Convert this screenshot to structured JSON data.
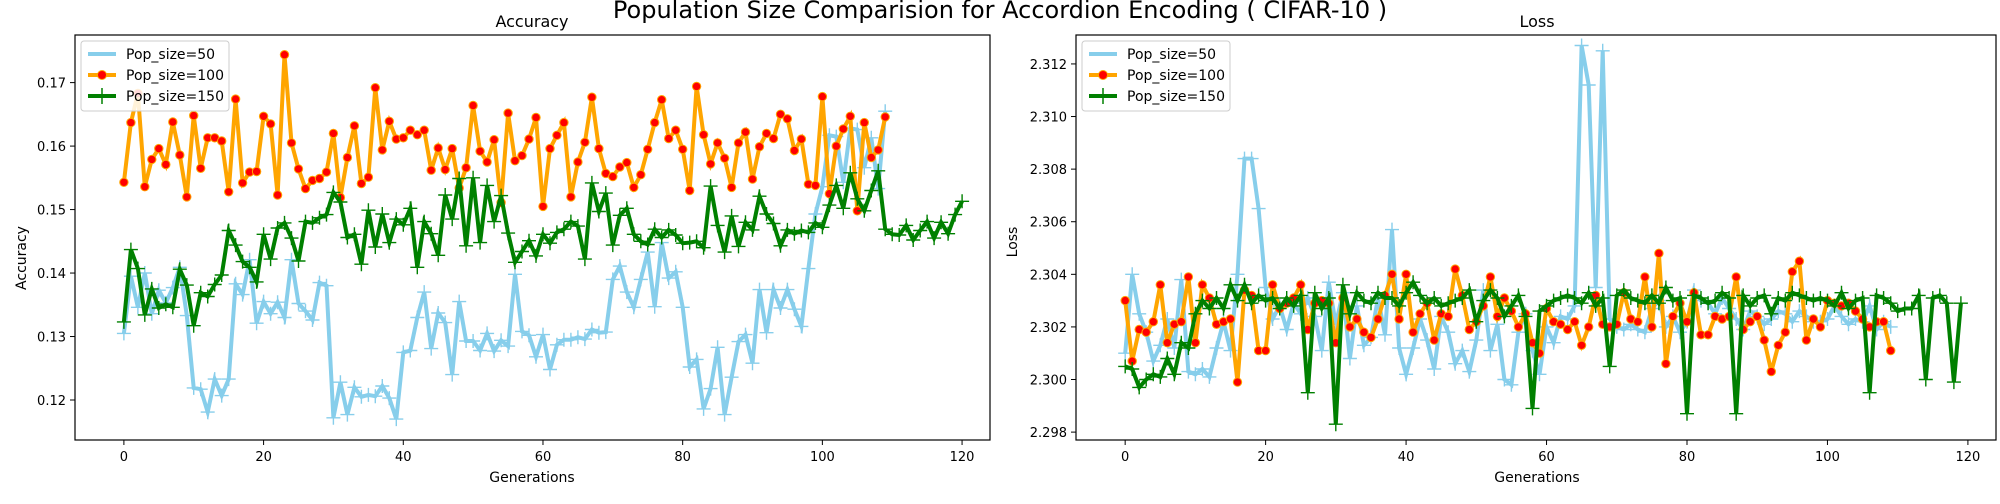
{
  "figure_title": "Population Size Comparision for Accordion Encoding ( CIFAR-10 )",
  "colors": {
    "pop50": "#87ceeb",
    "pop100": "#ffa500",
    "pop100_marker": "#ff0000",
    "pop150": "#008000"
  },
  "chart_data": [
    {
      "type": "line",
      "title": "Accuracy",
      "xlabel": "Generations",
      "ylabel": "Accuracy",
      "xlim": [
        -7,
        124
      ],
      "ylim": [
        0.1137,
        0.1775
      ],
      "xticks": [
        0,
        20,
        40,
        60,
        80,
        100,
        120
      ],
      "yticks": [
        0.12,
        0.13,
        0.14,
        0.15,
        0.16,
        0.17
      ],
      "grid": false,
      "legend_position": "upper-left",
      "series": [
        {
          "name": "Pop_size=50",
          "color": "#87ceeb",
          "marker": "+",
          "values": [
            0.1305,
            0.1395,
            0.1346,
            0.14,
            0.1336,
            0.1373,
            0.1353,
            0.1377,
            0.1409,
            0.1333,
            0.1219,
            0.1217,
            0.1181,
            0.1233,
            0.1207,
            0.1233,
            0.1383,
            0.1366,
            0.1421,
            0.1321,
            0.1355,
            0.1336,
            0.1354,
            0.133,
            0.1421,
            0.1352,
            0.134,
            0.1326,
            0.1385,
            0.138,
            0.1172,
            0.1228,
            0.1177,
            0.122,
            0.1205,
            0.1208,
            0.1206,
            0.1222,
            0.1203,
            0.117,
            0.1275,
            0.1278,
            0.133,
            0.137,
            0.1281,
            0.1337,
            0.1322,
            0.124,
            0.1355,
            0.1293,
            0.1293,
            0.1278,
            0.1305,
            0.1277,
            0.1294,
            0.1285,
            0.1398,
            0.1308,
            0.1302,
            0.1268,
            0.1303,
            0.1248,
            0.1287,
            0.1295,
            0.1295,
            0.1299,
            0.1296,
            0.1311,
            0.1306,
            0.1307,
            0.139,
            0.1411,
            0.137,
            0.1346,
            0.139,
            0.1433,
            0.1347,
            0.1448,
            0.1392,
            0.1402,
            0.1346,
            0.1252,
            0.1264,
            0.1186,
            0.1218,
            0.1283,
            0.1177,
            0.1236,
            0.1292,
            0.1303,
            0.1258,
            0.1374,
            0.1306,
            0.1374,
            0.1345,
            0.1374,
            0.1343,
            0.1316,
            0.1407,
            0.1493,
            0.1536,
            0.1617,
            0.1615,
            0.1543,
            0.1628,
            0.1626,
            0.1566,
            0.1613,
            0.1533,
            0.1655
          ]
        },
        {
          "name": "Pop_size=100",
          "color": "#ffa500",
          "marker": "o",
          "values": [
            0.1543,
            0.1637,
            0.1683,
            0.1536,
            0.1579,
            0.1596,
            0.1571,
            0.1638,
            0.1586,
            0.152,
            0.1648,
            0.1565,
            0.1613,
            0.1613,
            0.1608,
            0.1528,
            0.1674,
            0.1542,
            0.1559,
            0.156,
            0.1647,
            0.1635,
            0.1523,
            0.1744,
            0.1605,
            0.1564,
            0.1533,
            0.1546,
            0.1549,
            0.1559,
            0.162,
            0.1519,
            0.1582,
            0.1632,
            0.1541,
            0.1551,
            0.1692,
            0.1594,
            0.1639,
            0.1611,
            0.1613,
            0.1625,
            0.1618,
            0.1625,
            0.1562,
            0.1597,
            0.1563,
            0.1596,
            0.1534,
            0.1566,
            0.1664,
            0.1592,
            0.1575,
            0.161,
            0.1511,
            0.1652,
            0.1577,
            0.1585,
            0.1611,
            0.1645,
            0.1505,
            0.1596,
            0.1617,
            0.1637,
            0.152,
            0.1575,
            0.1606,
            0.1677,
            0.1596,
            0.1557,
            0.1552,
            0.1567,
            0.1574,
            0.1535,
            0.1555,
            0.1595,
            0.1637,
            0.1673,
            0.1612,
            0.1625,
            0.1595,
            0.153,
            0.1694,
            0.1618,
            0.1572,
            0.1605,
            0.1581,
            0.1535,
            0.1605,
            0.1622,
            0.1548,
            0.1599,
            0.162,
            0.1612,
            0.165,
            0.1643,
            0.1593,
            0.1611,
            0.154,
            0.1538,
            0.1678,
            0.1525,
            0.16,
            0.1627,
            0.1647,
            0.1498,
            0.1637,
            0.1582,
            0.1594,
            0.1646
          ]
        },
        {
          "name": "Pop_size=150",
          "color": "#008000",
          "marker": "+",
          "values": [
            0.1323,
            0.1437,
            0.1407,
            0.1334,
            0.1375,
            0.1345,
            0.1351,
            0.1346,
            0.1406,
            0.1381,
            0.1317,
            0.1369,
            0.1363,
            0.1382,
            0.1397,
            0.1467,
            0.1444,
            0.1418,
            0.1409,
            0.1386,
            0.1461,
            0.1422,
            0.1471,
            0.1479,
            0.1455,
            0.1419,
            0.1481,
            0.1479,
            0.1487,
            0.1492,
            0.1527,
            0.1512,
            0.1456,
            0.1461,
            0.1414,
            0.1499,
            0.1441,
            0.1493,
            0.1448,
            0.1485,
            0.1476,
            0.1502,
            0.1409,
            0.1481,
            0.1462,
            0.1428,
            0.1523,
            0.1485,
            0.1549,
            0.1443,
            0.155,
            0.1448,
            0.1538,
            0.1481,
            0.1522,
            0.1463,
            0.1417,
            0.1434,
            0.1451,
            0.1427,
            0.1461,
            0.1447,
            0.1464,
            0.1469,
            0.1481,
            0.1474,
            0.1422,
            0.1542,
            0.1497,
            0.1526,
            0.1444,
            0.1491,
            0.1502,
            0.1461,
            0.145,
            0.1445,
            0.1469,
            0.1456,
            0.1468,
            0.146,
            0.1447,
            0.1448,
            0.145,
            0.144,
            0.1537,
            0.1475,
            0.1433,
            0.149,
            0.1442,
            0.148,
            0.1468,
            0.1521,
            0.1493,
            0.1478,
            0.1443,
            0.1468,
            0.1462,
            0.1467,
            0.1464,
            0.1479,
            0.1472,
            0.1507,
            0.1538,
            0.1502,
            0.1558,
            0.1517,
            0.1498,
            0.153,
            0.1561,
            0.1469,
            0.1461,
            0.146,
            0.1475,
            0.1452,
            0.1467,
            0.1481,
            0.1455,
            0.148,
            0.1462,
            0.1492,
            0.1513
          ]
        }
      ]
    },
    {
      "type": "line",
      "title": "Loss",
      "xlabel": "Generations",
      "ylabel": "Loss",
      "xlim": [
        -7,
        124
      ],
      "ylim": [
        2.2977,
        2.3131
      ],
      "xticks": [
        0,
        20,
        40,
        60,
        80,
        100,
        120
      ],
      "yticks": [
        2.298,
        2.3,
        2.302,
        2.304,
        2.306,
        2.308,
        2.31,
        2.312
      ],
      "grid": false,
      "legend_position": "upper-left",
      "series": [
        {
          "name": "Pop_size=50",
          "color": "#87ceeb",
          "marker": "+",
          "values": [
            2.301,
            2.304,
            2.3025,
            2.3018,
            2.3007,
            2.3013,
            2.3023,
            2.3012,
            2.3038,
            2.3003,
            2.3002,
            2.3004,
            2.3001,
            2.3012,
            2.3022,
            2.3011,
            2.304,
            2.3084,
            2.3084,
            2.3065,
            2.3035,
            2.3023,
            2.3028,
            2.3019,
            2.3029,
            2.3025,
            2.3031,
            2.3024,
            2.3011,
            2.3037,
            2.3021,
            2.3033,
            2.3008,
            2.3028,
            2.3013,
            2.3016,
            2.3031,
            2.3017,
            2.3057,
            2.3012,
            2.3002,
            2.3012,
            2.3023,
            2.3015,
            2.3004,
            2.3024,
            2.3018,
            2.3006,
            2.3011,
            2.3003,
            2.3015,
            2.3034,
            2.3011,
            2.3021,
            2.3,
            2.2998,
            2.3018,
            2.3025,
            2.3011,
            2.3002,
            2.302,
            2.3014,
            2.3024,
            2.3023,
            2.3028,
            2.3127,
            2.3112,
            2.3035,
            2.3125,
            2.3023,
            2.302,
            2.3019,
            2.3021,
            2.3019,
            2.3018,
            2.3027,
            2.303,
            2.302,
            2.3024,
            2.3018,
            2.3022,
            2.3034,
            2.303,
            2.3029,
            2.3025,
            2.3031,
            2.3027,
            2.3023,
            2.3019,
            2.3026,
            2.3024,
            2.3021,
            2.3023,
            2.3026,
            2.3025,
            2.3022,
            2.3026,
            2.3024,
            2.3022,
            2.3022,
            2.3023,
            2.3028,
            2.3024,
            2.3021,
            2.3023,
            2.3022,
            2.3028,
            2.3019,
            2.3022,
            2.302
          ]
        },
        {
          "name": "Pop_size=100",
          "color": "#ffa500",
          "marker": "o",
          "values": [
            2.303,
            2.3007,
            2.3019,
            2.3018,
            2.3022,
            2.3036,
            2.3014,
            2.3021,
            2.3022,
            2.3039,
            2.3014,
            2.3036,
            2.3031,
            2.3021,
            2.3022,
            2.3023,
            2.2999,
            2.3034,
            2.3032,
            2.3011,
            2.3011,
            2.3036,
            2.3027,
            2.3029,
            2.3031,
            2.3036,
            2.3019,
            2.3029,
            2.303,
            2.3029,
            2.3014,
            2.3031,
            2.302,
            2.3023,
            2.3018,
            2.3016,
            2.3023,
            2.3032,
            2.304,
            2.3023,
            2.304,
            2.3018,
            2.3025,
            2.3029,
            2.3015,
            2.3025,
            2.3024,
            2.3042,
            2.3032,
            2.3019,
            2.3022,
            2.3028,
            2.3039,
            2.3024,
            2.3031,
            2.3026,
            2.302,
            2.3025,
            2.3014,
            2.301,
            2.3027,
            2.3022,
            2.3021,
            2.3019,
            2.3022,
            2.3013,
            2.302,
            2.3032,
            2.3021,
            2.302,
            2.3021,
            2.3033,
            2.3023,
            2.3022,
            2.3039,
            2.302,
            2.3048,
            2.3006,
            2.3024,
            2.3029,
            2.3022,
            2.3033,
            2.3017,
            2.3017,
            2.3024,
            2.3023,
            2.3024,
            2.3039,
            2.3019,
            2.3022,
            2.3024,
            2.3015,
            2.3003,
            2.3013,
            2.3018,
            2.3041,
            2.3045,
            2.3015,
            2.3023,
            2.302,
            2.303,
            2.3029,
            2.3028,
            2.3029,
            2.3026,
            2.3023,
            2.302,
            2.3022,
            2.3022,
            2.3011
          ]
        },
        {
          "name": "Pop_size=150",
          "color": "#008000",
          "marker": "+",
          "values": [
            2.3005,
            2.3004,
            2.2997,
            2.3,
            2.3002,
            2.3001,
            2.3008,
            2.3002,
            2.3014,
            2.3012,
            2.3025,
            2.303,
            2.3027,
            2.3031,
            2.3027,
            2.3036,
            2.303,
            2.3036,
            2.3029,
            2.3032,
            2.303,
            2.3031,
            2.3027,
            2.3031,
            2.3028,
            2.3032,
            2.2995,
            2.3033,
            2.3027,
            2.3031,
            2.2983,
            2.3036,
            2.3025,
            2.3033,
            2.303,
            2.3029,
            2.3033,
            2.3031,
            2.3031,
            2.3028,
            2.3033,
            2.3037,
            2.3032,
            2.3029,
            2.3031,
            2.3028,
            2.3029,
            2.303,
            2.3031,
            2.3034,
            2.3022,
            2.303,
            2.3034,
            2.3031,
            2.3024,
            2.3028,
            2.3032,
            2.3024,
            2.2989,
            2.3026,
            2.3028,
            2.303,
            2.3031,
            2.3032,
            2.3031,
            2.3029,
            2.3033,
            2.3028,
            2.3031,
            2.3005,
            2.3032,
            2.3034,
            2.3031,
            2.303,
            2.3029,
            2.3032,
            2.3029,
            2.3035,
            2.303,
            2.3031,
            2.2987,
            2.3032,
            2.3031,
            2.3029,
            2.303,
            2.3033,
            2.3031,
            2.2987,
            2.3032,
            2.3028,
            2.3031,
            2.3032,
            2.3025,
            2.3031,
            2.303,
            2.3033,
            2.3032,
            2.3031,
            2.303,
            2.3031,
            2.303,
            2.3028,
            2.3033,
            2.3027,
            2.303,
            2.3031,
            2.2995,
            2.3032,
            2.3031,
            2.3029,
            2.3026,
            2.3027,
            2.3027,
            2.3032,
            2.3,
            2.3031,
            2.3032,
            2.3029,
            2.2999,
            2.3029
          ]
        }
      ]
    }
  ]
}
